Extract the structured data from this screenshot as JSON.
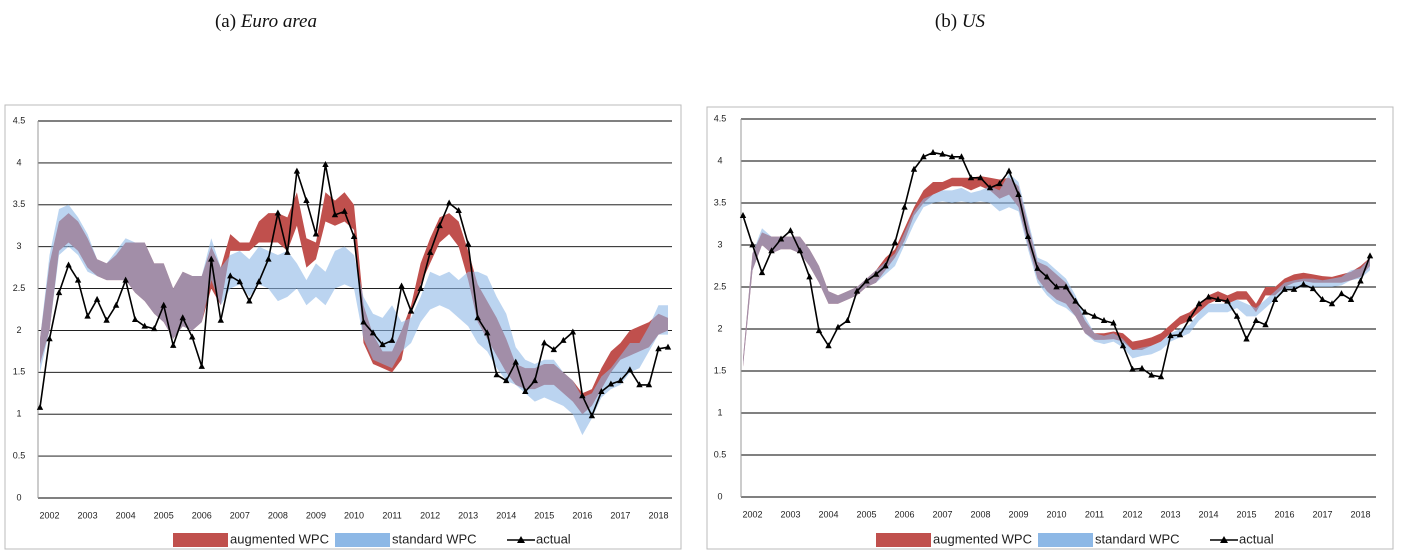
{
  "chart_data": [
    {
      "type": "range-line",
      "label": "(a)",
      "title": "Euro area",
      "categories": [
        null,
        "2002",
        null,
        null,
        null,
        "2003",
        null,
        null,
        null,
        "2004",
        null,
        null,
        null,
        "2005",
        null,
        null,
        null,
        "2006",
        null,
        null,
        null,
        "2007",
        null,
        null,
        null,
        "2008",
        null,
        null,
        null,
        "2009",
        null,
        null,
        null,
        "2010",
        null,
        null,
        null,
        "2011",
        null,
        null,
        null,
        "2012",
        null,
        null,
        null,
        "2013",
        null,
        null,
        null,
        "2014",
        null,
        null,
        null,
        "2015",
        null,
        null,
        null,
        "2016",
        null,
        null,
        null,
        "2017",
        null,
        null,
        null,
        "2018",
        null
      ],
      "ylim": [
        0,
        4.5
      ],
      "yticks": [
        0,
        0.5,
        1,
        1.5,
        2,
        2.5,
        3,
        3.5,
        4,
        4.5
      ],
      "grid": true,
      "series": [
        {
          "name": "augmented WPC",
          "color": "#c0504d",
          "upper": [
            1.9,
            2.8,
            3.3,
            3.4,
            3.3,
            3.1,
            2.85,
            2.8,
            2.9,
            3.05,
            3.05,
            3.05,
            2.8,
            2.8,
            2.5,
            2.7,
            2.65,
            2.65,
            3.0,
            2.75,
            3.15,
            3.05,
            3.05,
            3.3,
            3.4,
            3.4,
            3.35,
            3.65,
            3.1,
            3.05,
            3.65,
            3.55,
            3.65,
            3.5,
            2.3,
            1.95,
            1.75,
            1.75,
            2.0,
            2.3,
            2.8,
            3.1,
            3.35,
            3.4,
            3.3,
            2.95,
            2.55,
            2.35,
            2.15,
            1.9,
            1.6,
            1.55,
            1.55,
            1.6,
            1.6,
            1.5,
            1.4,
            1.25,
            1.3,
            1.55,
            1.75,
            1.85,
            2.0,
            2.05,
            2.1,
            2.2,
            2.15
          ],
          "lower": [
            1.6,
            2.0,
            2.95,
            3.05,
            2.95,
            2.75,
            2.65,
            2.6,
            2.6,
            2.6,
            2.45,
            2.35,
            2.2,
            2.1,
            1.9,
            2.05,
            2.0,
            2.1,
            2.5,
            2.3,
            2.95,
            2.95,
            2.95,
            3.05,
            3.05,
            3.05,
            2.95,
            3.25,
            2.75,
            2.85,
            3.3,
            3.25,
            3.3,
            3.2,
            1.85,
            1.6,
            1.55,
            1.5,
            1.65,
            2.2,
            2.55,
            2.8,
            3.05,
            3.15,
            3.0,
            2.6,
            2.1,
            1.9,
            1.7,
            1.5,
            1.35,
            1.3,
            1.3,
            1.35,
            1.35,
            1.25,
            1.15,
            1.0,
            1.1,
            1.3,
            1.5,
            1.65,
            1.7,
            1.75,
            1.8,
            1.95,
            2.0
          ]
        },
        {
          "name": "standard WPC",
          "color": "#8db8e6",
          "upper": [
            1.9,
            2.9,
            3.45,
            3.5,
            3.35,
            3.15,
            2.85,
            2.8,
            2.95,
            3.1,
            3.05,
            3.05,
            2.8,
            2.8,
            2.5,
            2.7,
            2.65,
            2.65,
            3.1,
            2.75,
            2.9,
            2.95,
            2.85,
            3.0,
            2.95,
            2.9,
            2.95,
            2.8,
            2.6,
            2.8,
            2.7,
            2.95,
            3.0,
            2.9,
            2.4,
            2.2,
            2.15,
            2.3,
            2.1,
            2.15,
            2.4,
            2.7,
            2.65,
            2.7,
            2.6,
            2.7,
            2.7,
            2.65,
            2.4,
            2.2,
            1.8,
            1.65,
            1.6,
            1.65,
            1.65,
            1.5,
            1.4,
            1.2,
            1.25,
            1.45,
            1.55,
            1.7,
            1.85,
            1.85,
            2.05,
            2.3,
            2.3
          ],
          "lower": [
            1.5,
            2.0,
            2.9,
            3.0,
            2.9,
            2.7,
            2.65,
            2.6,
            2.6,
            2.6,
            2.45,
            2.35,
            2.2,
            2.1,
            1.9,
            2.05,
            2.0,
            2.1,
            2.6,
            2.3,
            2.5,
            2.55,
            2.4,
            2.55,
            2.5,
            2.35,
            2.4,
            2.5,
            2.3,
            2.4,
            2.3,
            2.5,
            2.55,
            2.5,
            1.9,
            1.65,
            1.6,
            1.55,
            1.75,
            1.85,
            2.1,
            2.25,
            2.3,
            2.25,
            2.15,
            2.05,
            1.85,
            1.75,
            1.55,
            1.4,
            1.35,
            1.25,
            1.15,
            1.2,
            1.15,
            1.1,
            1.0,
            0.75,
            0.95,
            1.2,
            1.3,
            1.35,
            1.5,
            1.55,
            1.75,
            1.95,
            1.95
          ]
        },
        {
          "name": "actual",
          "color": "#000000",
          "marker": "triangle",
          "values": [
            1.08,
            1.9,
            2.45,
            2.78,
            2.6,
            2.17,
            2.37,
            2.12,
            2.3,
            2.6,
            2.13,
            2.05,
            2.02,
            2.3,
            1.82,
            2.15,
            1.92,
            1.57,
            2.85,
            2.12,
            2.65,
            2.58,
            2.35,
            2.58,
            2.85,
            3.4,
            2.93,
            3.9,
            3.55,
            3.15,
            3.98,
            3.38,
            3.42,
            3.12,
            2.1,
            1.97,
            1.83,
            1.88,
            2.53,
            2.23,
            2.5,
            2.93,
            3.25,
            3.52,
            3.43,
            3.03,
            2.15,
            1.97,
            1.47,
            1.4,
            1.62,
            1.27,
            1.4,
            1.85,
            1.77,
            1.88,
            1.98,
            1.22,
            0.98,
            1.27,
            1.36,
            1.4,
            1.53,
            1.35,
            1.35,
            1.78,
            1.8
          ]
        }
      ]
    },
    {
      "type": "range-line",
      "label": "(b)",
      "title": "US",
      "categories": [
        null,
        "2002",
        null,
        null,
        null,
        "2003",
        null,
        null,
        null,
        "2004",
        null,
        null,
        null,
        "2005",
        null,
        null,
        null,
        "2006",
        null,
        null,
        null,
        "2007",
        null,
        null,
        null,
        "2008",
        null,
        null,
        null,
        "2009",
        null,
        null,
        null,
        "2010",
        null,
        null,
        null,
        "2011",
        null,
        null,
        null,
        "2012",
        null,
        null,
        null,
        "2013",
        null,
        null,
        null,
        "2014",
        null,
        null,
        null,
        "2015",
        null,
        null,
        null,
        "2016",
        null,
        null,
        null,
        "2017",
        null,
        null,
        null,
        "2018",
        null
      ],
      "ylim": [
        0,
        4.5
      ],
      "yticks": [
        0,
        0.5,
        1,
        1.5,
        2,
        2.5,
        3,
        3.5,
        4,
        4.5
      ],
      "grid": true,
      "series": [
        {
          "name": "augmented WPC",
          "color": "#c0504d",
          "upper": [
            1.65,
            2.9,
            3.15,
            3.1,
            3.1,
            3.1,
            3.1,
            2.95,
            2.75,
            2.45,
            2.4,
            2.45,
            2.5,
            2.6,
            2.7,
            2.85,
            2.95,
            3.2,
            3.45,
            3.65,
            3.75,
            3.75,
            3.8,
            3.8,
            3.8,
            3.82,
            3.8,
            3.78,
            3.8,
            3.7,
            3.25,
            2.8,
            2.75,
            2.65,
            2.55,
            2.35,
            2.1,
            1.95,
            1.95,
            1.97,
            1.95,
            1.85,
            1.87,
            1.9,
            1.95,
            2.05,
            2.15,
            2.2,
            2.3,
            2.4,
            2.45,
            2.4,
            2.45,
            2.45,
            2.3,
            2.5,
            2.5,
            2.6,
            2.65,
            2.67,
            2.65,
            2.63,
            2.62,
            2.65,
            2.68,
            2.75,
            2.85
          ],
          "lower": [
            1.55,
            2.7,
            3.0,
            2.9,
            2.95,
            2.95,
            2.9,
            2.75,
            2.55,
            2.3,
            2.3,
            2.35,
            2.4,
            2.5,
            2.55,
            2.7,
            2.85,
            3.05,
            3.35,
            3.5,
            3.6,
            3.65,
            3.7,
            3.7,
            3.65,
            3.7,
            3.65,
            3.55,
            3.6,
            3.45,
            3.0,
            2.6,
            2.45,
            2.35,
            2.3,
            2.15,
            1.95,
            1.87,
            1.87,
            1.88,
            1.85,
            1.75,
            1.75,
            1.8,
            1.85,
            1.95,
            2.05,
            2.1,
            2.2,
            2.3,
            2.35,
            2.3,
            2.35,
            2.35,
            2.2,
            2.4,
            2.4,
            2.5,
            2.55,
            2.57,
            2.55,
            2.55,
            2.55,
            2.55,
            2.58,
            2.62,
            2.75
          ]
        },
        {
          "name": "standard WPC",
          "color": "#8db8e6",
          "upper": [
            1.65,
            2.9,
            3.2,
            3.1,
            3.1,
            3.1,
            3.1,
            2.95,
            2.75,
            2.45,
            2.4,
            2.45,
            2.5,
            2.6,
            2.7,
            2.8,
            2.9,
            3.15,
            3.4,
            3.55,
            3.6,
            3.65,
            3.65,
            3.68,
            3.62,
            3.65,
            3.7,
            3.65,
            3.85,
            3.75,
            3.3,
            2.85,
            2.8,
            2.7,
            2.6,
            2.4,
            2.15,
            1.95,
            1.92,
            1.95,
            1.88,
            1.75,
            1.78,
            1.8,
            1.85,
            1.95,
            2.0,
            2.05,
            2.2,
            2.3,
            2.3,
            2.3,
            2.35,
            2.3,
            2.25,
            2.35,
            2.45,
            2.55,
            2.58,
            2.6,
            2.6,
            2.58,
            2.6,
            2.62,
            2.7,
            2.72,
            2.85
          ],
          "lower": [
            1.55,
            2.7,
            3.0,
            2.9,
            2.95,
            2.95,
            2.9,
            2.75,
            2.55,
            2.3,
            2.3,
            2.35,
            2.4,
            2.5,
            2.55,
            2.65,
            2.75,
            3.0,
            3.25,
            3.45,
            3.5,
            3.52,
            3.5,
            3.52,
            3.5,
            3.52,
            3.5,
            3.4,
            3.45,
            3.4,
            2.95,
            2.55,
            2.4,
            2.3,
            2.25,
            2.15,
            1.95,
            1.85,
            1.82,
            1.85,
            1.78,
            1.65,
            1.68,
            1.7,
            1.75,
            1.85,
            1.9,
            1.95,
            2.1,
            2.2,
            2.2,
            2.2,
            2.25,
            2.15,
            2.15,
            2.25,
            2.35,
            2.45,
            2.48,
            2.5,
            2.5,
            2.5,
            2.5,
            2.52,
            2.58,
            2.6,
            2.7
          ]
        },
        {
          "name": "actual",
          "color": "#000000",
          "marker": "triangle",
          "values": [
            3.35,
            3.0,
            2.67,
            2.93,
            3.07,
            3.17,
            2.93,
            2.62,
            1.98,
            1.8,
            2.02,
            2.1,
            2.45,
            2.57,
            2.65,
            2.75,
            3.03,
            3.45,
            3.9,
            4.05,
            4.1,
            4.08,
            4.05,
            4.05,
            3.8,
            3.8,
            3.68,
            3.73,
            3.88,
            3.6,
            3.1,
            2.72,
            2.62,
            2.5,
            2.5,
            2.33,
            2.2,
            2.15,
            2.1,
            2.07,
            1.8,
            1.52,
            1.53,
            1.45,
            1.43,
            1.92,
            1.93,
            2.12,
            2.3,
            2.38,
            2.35,
            2.33,
            2.15,
            1.88,
            2.1,
            2.05,
            2.35,
            2.47,
            2.47,
            2.53,
            2.48,
            2.35,
            2.3,
            2.42,
            2.35,
            2.57,
            2.87
          ]
        }
      ]
    }
  ]
}
